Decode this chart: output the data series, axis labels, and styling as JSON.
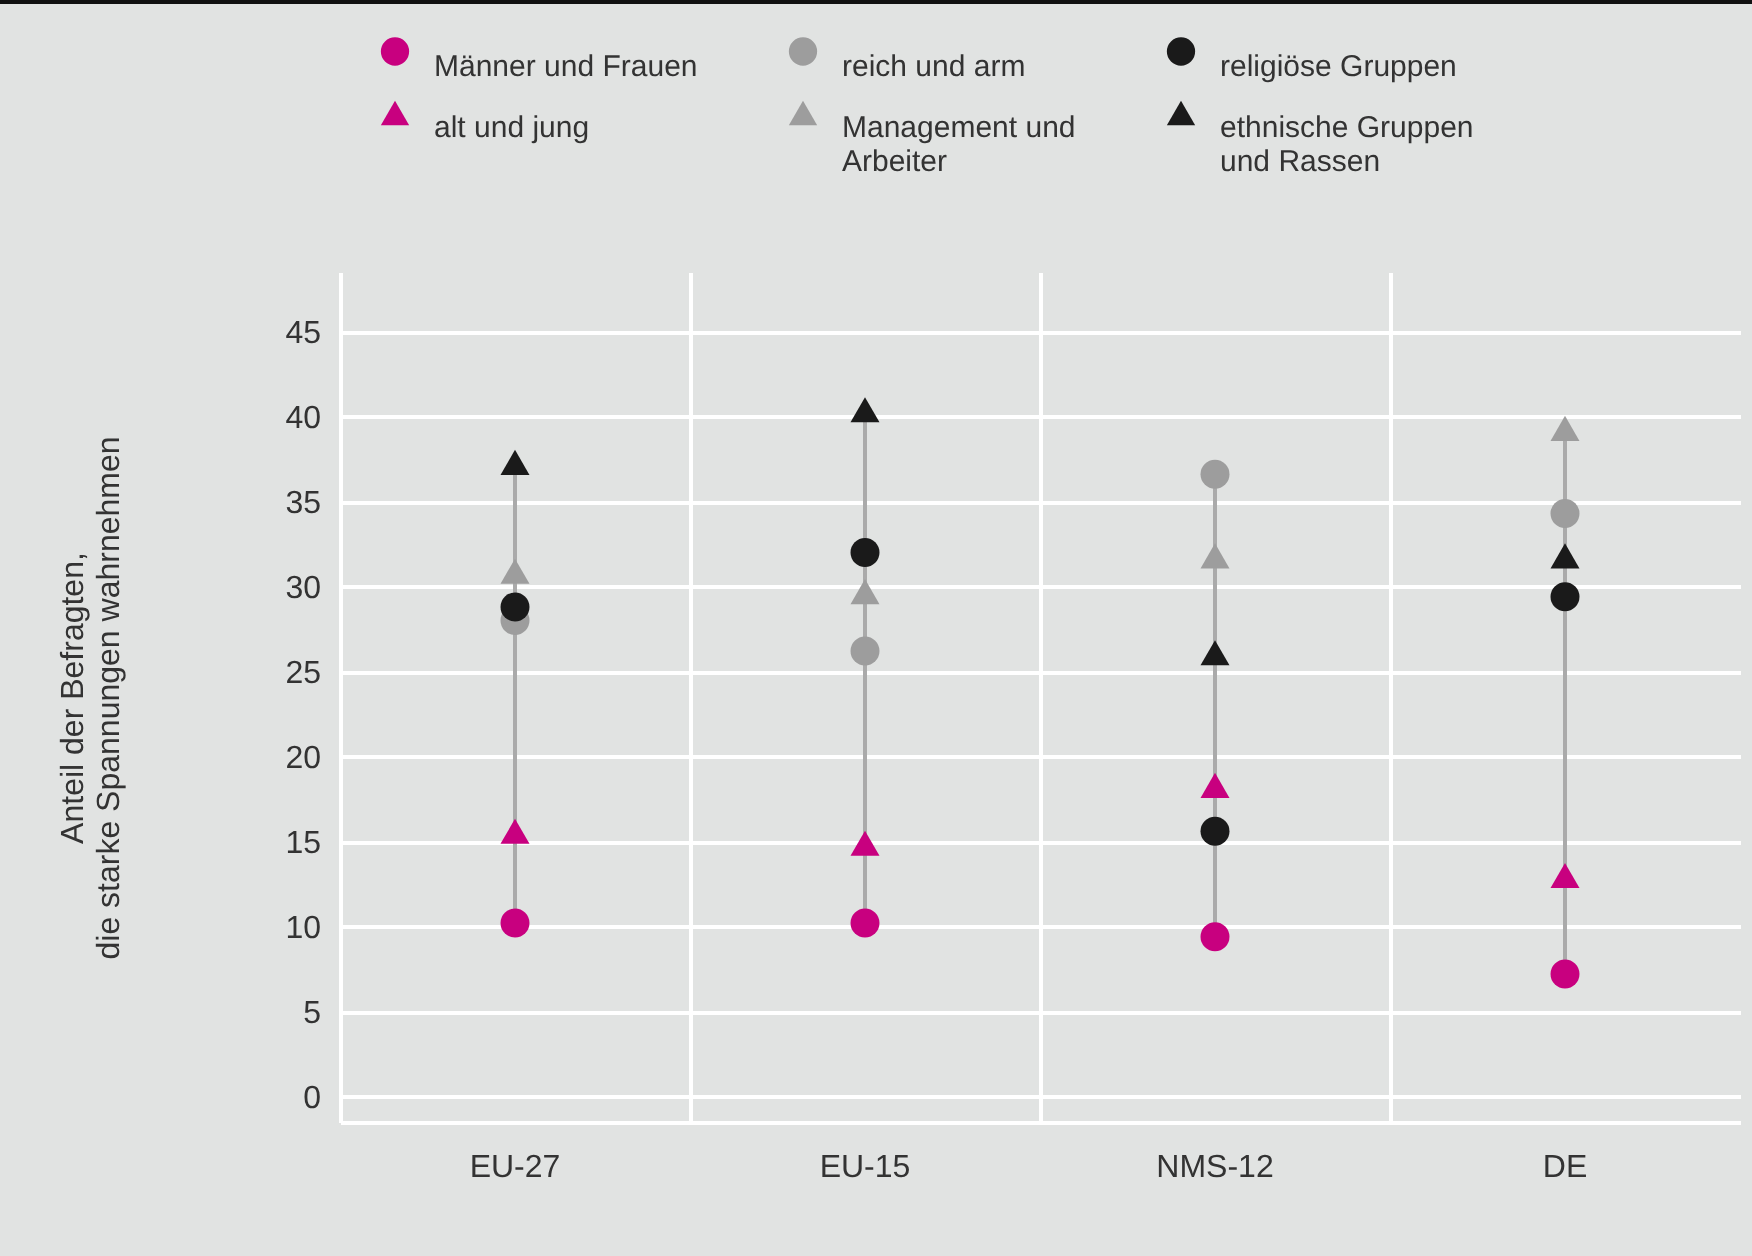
{
  "chart_data": {
    "type": "scatter",
    "ylabel": "Anteil der Befragten, die starke Spannungen wahrnehmen",
    "categories": [
      "EU-27",
      "EU-15",
      "NMS-12",
      "DE"
    ],
    "ylim": [
      -1.5,
      48.5
    ],
    "yticks": [
      0,
      5,
      10,
      15,
      20,
      25,
      30,
      35,
      40,
      45
    ],
    "grid": true,
    "legend": "top",
    "series": [
      {
        "name": "Männer und Frauen",
        "color": "#c8007f",
        "marker": "circle",
        "values": [
          10.2,
          10.2,
          9.4,
          7.2
        ]
      },
      {
        "name": "reich und arm",
        "color": "#9d9d9d",
        "marker": "circle",
        "values": [
          28.0,
          26.2,
          36.6,
          34.3
        ]
      },
      {
        "name": "religiöse Gruppen",
        "color": "#1a1a1a",
        "marker": "circle",
        "values": [
          28.8,
          32.0,
          15.6,
          29.4
        ]
      },
      {
        "name": "alt und jung",
        "color": "#c8007f",
        "marker": "triangle",
        "values": [
          15.6,
          14.9,
          18.3,
          13.0
        ]
      },
      {
        "name": "Management und Arbeiter",
        "color": "#9d9d9d",
        "marker": "triangle",
        "values": [
          30.9,
          29.7,
          31.8,
          39.3
        ]
      },
      {
        "name": "ethnische Gruppen und Rassen",
        "color": "#1a1a1a",
        "marker": "triangle",
        "values": [
          37.3,
          40.4,
          26.1,
          31.8
        ]
      }
    ]
  }
}
